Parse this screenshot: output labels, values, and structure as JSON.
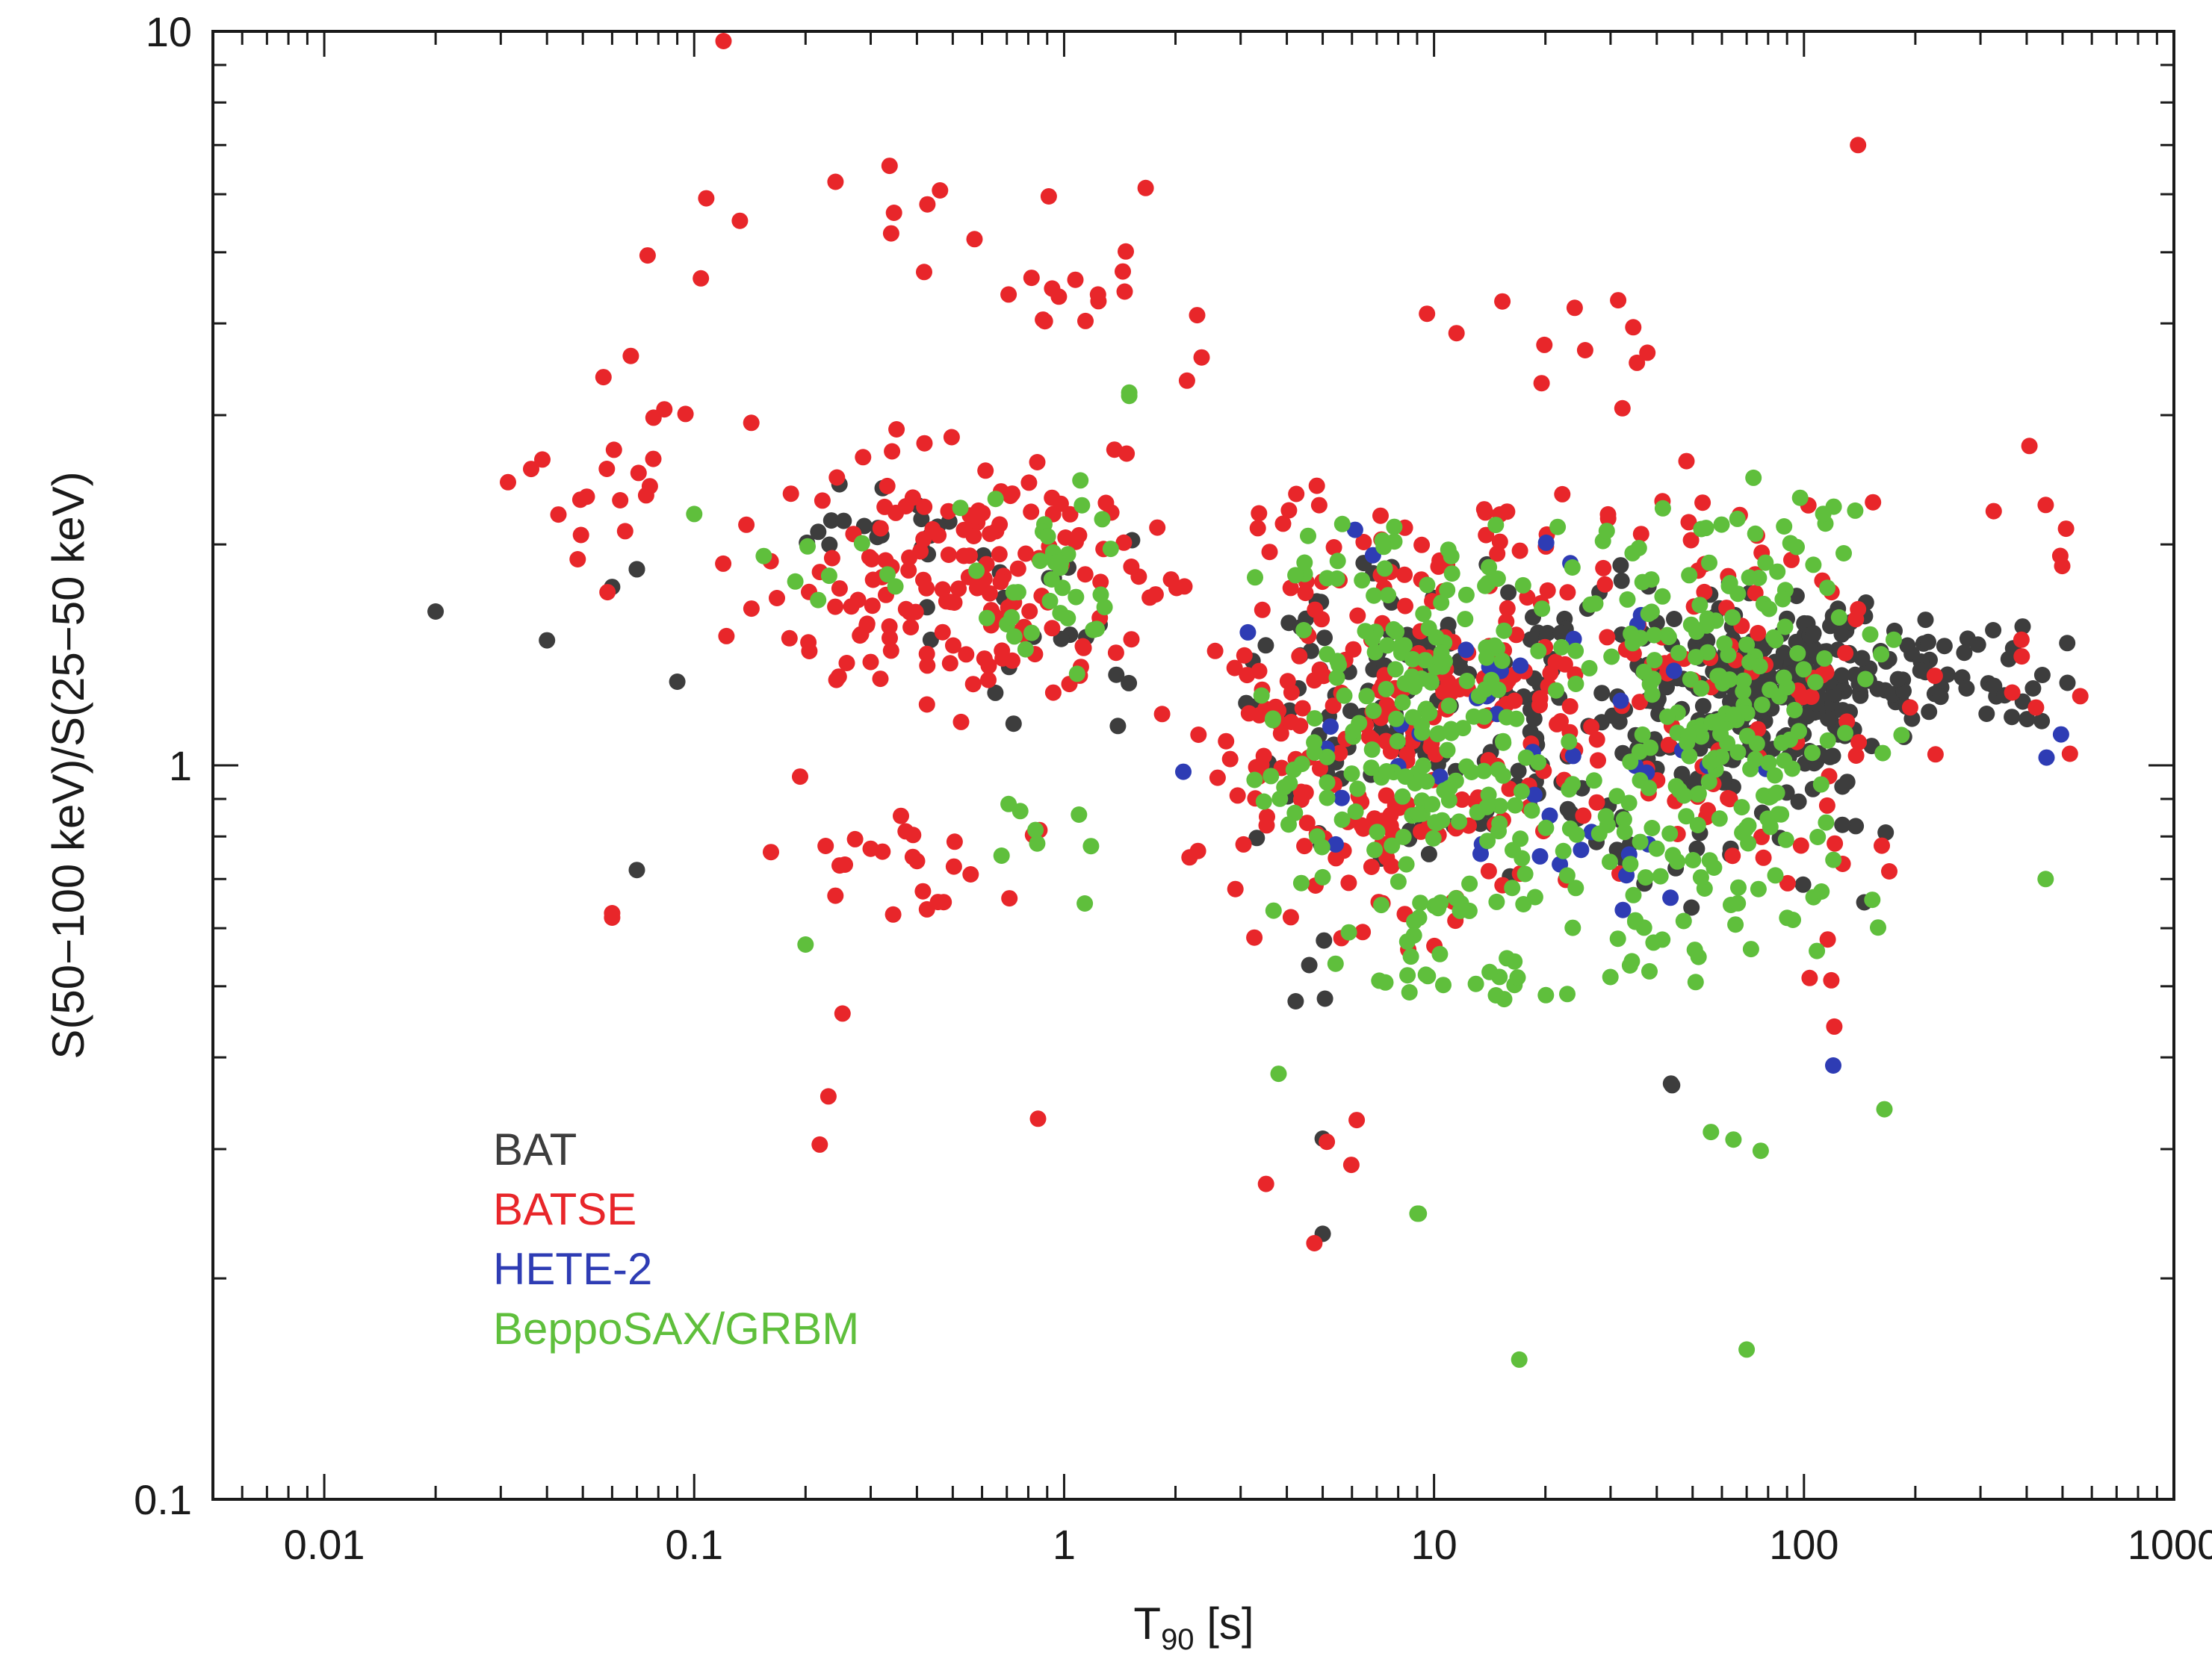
{
  "chart_data": {
    "type": "scatter",
    "title": "",
    "xlabel": "T",
    "xlabel_sub": "90",
    "xlabel_unit": " [s]",
    "ylabel": "S(50−100 keV)/S(25−50 keV)",
    "xscale": "log",
    "yscale": "log",
    "xlim": [
      0.005,
      1000
    ],
    "ylim": [
      0.1,
      10
    ],
    "x_ticks": [
      {
        "value": 0.01,
        "label": "0.01"
      },
      {
        "value": 0.1,
        "label": "0.1"
      },
      {
        "value": 1,
        "label": "1"
      },
      {
        "value": 10,
        "label": "10"
      },
      {
        "value": 100,
        "label": "100"
      },
      {
        "value": 1000,
        "label": "1000"
      }
    ],
    "y_ticks": [
      {
        "value": 0.1,
        "label": "0.1"
      },
      {
        "value": 1,
        "label": "1"
      },
      {
        "value": 10,
        "label": "10"
      }
    ],
    "grid": false,
    "legend_position": "bottom-left",
    "series": [
      {
        "name": "BAT",
        "color": "#3d3d3d",
        "clusters": [
          {
            "x": [
              0.02,
              0.02
            ],
            "y": [
              1.62,
              1.62
            ],
            "n": 1
          },
          {
            "x": [
              0.04,
              0.04
            ],
            "y": [
              1.48,
              1.48
            ],
            "n": 1
          },
          {
            "x": [
              0.06,
              0.06
            ],
            "y": [
              1.75,
              1.75
            ],
            "n": 1
          },
          {
            "x": [
              0.07,
              0.07
            ],
            "y": [
              1.85,
              1.85
            ],
            "n": 2
          },
          {
            "x": [
              0.07,
              0.07
            ],
            "y": [
              0.72,
              0.72
            ],
            "n": 1
          },
          {
            "x": [
              0.09,
              0.09
            ],
            "y": [
              1.3,
              1.3
            ],
            "n": 1
          },
          {
            "x": [
              0.15,
              0.7
            ],
            "y": [
              1.8,
              2.5
            ],
            "n": 18
          },
          {
            "x": [
              0.3,
              2.5
            ],
            "y": [
              1.0,
              2.2
            ],
            "n": 20
          },
          {
            "x": [
              2.5,
              30
            ],
            "y": [
              0.7,
              2.0
            ],
            "n": 120
          },
          {
            "x": [
              30,
              300
            ],
            "y": [
              1.0,
              1.7
            ],
            "n": 230
          },
          {
            "x": [
              10,
              200
            ],
            "y": [
              0.6,
              2.0
            ],
            "n": 110
          },
          {
            "x": [
              200,
              650
            ],
            "y": [
              1.1,
              1.6
            ],
            "n": 20
          },
          {
            "x": [
              3.5,
              7
            ],
            "y": [
              0.45,
              0.6
            ],
            "n": 4
          },
          {
            "x": [
              5,
              5
            ],
            "y": [
              0.31,
              0.31
            ],
            "n": 1
          },
          {
            "x": [
              5,
              5
            ],
            "y": [
              0.23,
              0.23
            ],
            "n": 1
          },
          {
            "x": [
              38,
              48
            ],
            "y": [
              0.32,
              0.47
            ],
            "n": 2
          }
        ]
      },
      {
        "name": "BATSE",
        "color": "#e8262a",
        "clusters": [
          {
            "x": [
              0.12,
              0.12
            ],
            "y": [
              9.7,
              9.7
            ],
            "n": 1
          },
          {
            "x": [
              0.07,
              0.6
            ],
            "y": [
              4.0,
              7.0
            ],
            "n": 10
          },
          {
            "x": [
              0.4,
              3
            ],
            "y": [
              3.0,
              6.5
            ],
            "n": 20
          },
          {
            "x": [
              0.03,
              0.1
            ],
            "y": [
              1.6,
              4.2
            ],
            "n": 22
          },
          {
            "x": [
              0.1,
              2.5
            ],
            "y": [
              1.0,
              3.0
            ],
            "n": 170
          },
          {
            "x": [
              0.15,
              1
            ],
            "y": [
              0.6,
              1.0
            ],
            "n": 25
          },
          {
            "x": [
              0.06,
              0.06
            ],
            "y": [
              0.58,
              0.65
            ],
            "n": 2
          },
          {
            "x": [
              0.2,
              0.3
            ],
            "y": [
              0.28,
              0.6
            ],
            "n": 3
          },
          {
            "x": [
              0.85,
              0.85
            ],
            "y": [
              0.33,
              0.33
            ],
            "n": 1
          },
          {
            "x": [
              2,
              30
            ],
            "y": [
              0.5,
              2.6
            ],
            "n": 230
          },
          {
            "x": [
              10,
              250
            ],
            "y": [
              0.6,
              3.2
            ],
            "n": 120
          },
          {
            "x": [
              8,
              80
            ],
            "y": [
              3.0,
              4.6
            ],
            "n": 12
          },
          {
            "x": [
              250,
              700
            ],
            "y": [
              0.8,
              3.0
            ],
            "n": 12
          },
          {
            "x": [
              3,
              8
            ],
            "y": [
              0.19,
              0.42
            ],
            "n": 5
          },
          {
            "x": [
              100,
              150
            ],
            "y": [
              0.4,
              0.65
            ],
            "n": 4
          },
          {
            "x": [
              140,
              140
            ],
            "y": [
              7.0,
              7.0
            ],
            "n": 1
          }
        ]
      },
      {
        "name": "HETE-2",
        "color": "#2e3cb4",
        "clusters": [
          {
            "x": [
              2.1,
              2.1
            ],
            "y": [
              0.98,
              0.98
            ],
            "n": 1
          },
          {
            "x": [
              3,
              100
            ],
            "y": [
              0.55,
              2.2
            ],
            "n": 45
          },
          {
            "x": [
              120,
              120
            ],
            "y": [
              0.39,
              0.39
            ],
            "n": 1
          },
          {
            "x": [
              450,
              540
            ],
            "y": [
              0.83,
              1.15
            ],
            "n": 2
          }
        ]
      },
      {
        "name": "BeppoSAX/GRBM",
        "color": "#5fbf3c",
        "clusters": [
          {
            "x": [
              0.1,
              0.1
            ],
            "y": [
              2.2,
              2.2
            ],
            "n": 1
          },
          {
            "x": [
              0.1,
              0.5
            ],
            "y": [
              1.5,
              2.2
            ],
            "n": 8
          },
          {
            "x": [
              0.5,
              1.5
            ],
            "y": [
              1.2,
              2.8
            ],
            "n": 35
          },
          {
            "x": [
              1.5,
              1.5
            ],
            "y": [
              3.1,
              3.3
            ],
            "n": 2
          },
          {
            "x": [
              0.6,
              1.5
            ],
            "y": [
              0.6,
              1.0
            ],
            "n": 8
          },
          {
            "x": [
              0.2,
              0.2
            ],
            "y": [
              0.57,
              0.57
            ],
            "n": 1
          },
          {
            "x": [
              3,
              30
            ],
            "y": [
              0.5,
              2.5
            ],
            "n": 220
          },
          {
            "x": [
              20,
              200
            ],
            "y": [
              0.5,
              2.8
            ],
            "n": 220
          },
          {
            "x": [
              4,
              70
            ],
            "y": [
              0.45,
              0.65
            ],
            "n": 30
          },
          {
            "x": [
              3.8,
              3.8
            ],
            "y": [
              0.38,
              0.38
            ],
            "n": 1
          },
          {
            "x": [
              8,
              9.5
            ],
            "y": [
              0.245,
              0.245
            ],
            "n": 2
          },
          {
            "x": [
              17,
              17
            ],
            "y": [
              0.155,
              0.155
            ],
            "n": 1
          },
          {
            "x": [
              40,
              90
            ],
            "y": [
              0.29,
              0.32
            ],
            "n": 3
          },
          {
            "x": [
              70,
              70
            ],
            "y": [
              0.16,
              0.16
            ],
            "n": 1
          },
          {
            "x": [
              165,
              165
            ],
            "y": [
              0.34,
              0.34
            ],
            "n": 1
          },
          {
            "x": [
              450,
              450
            ],
            "y": [
              0.7,
              0.7
            ],
            "n": 1
          }
        ]
      }
    ]
  }
}
